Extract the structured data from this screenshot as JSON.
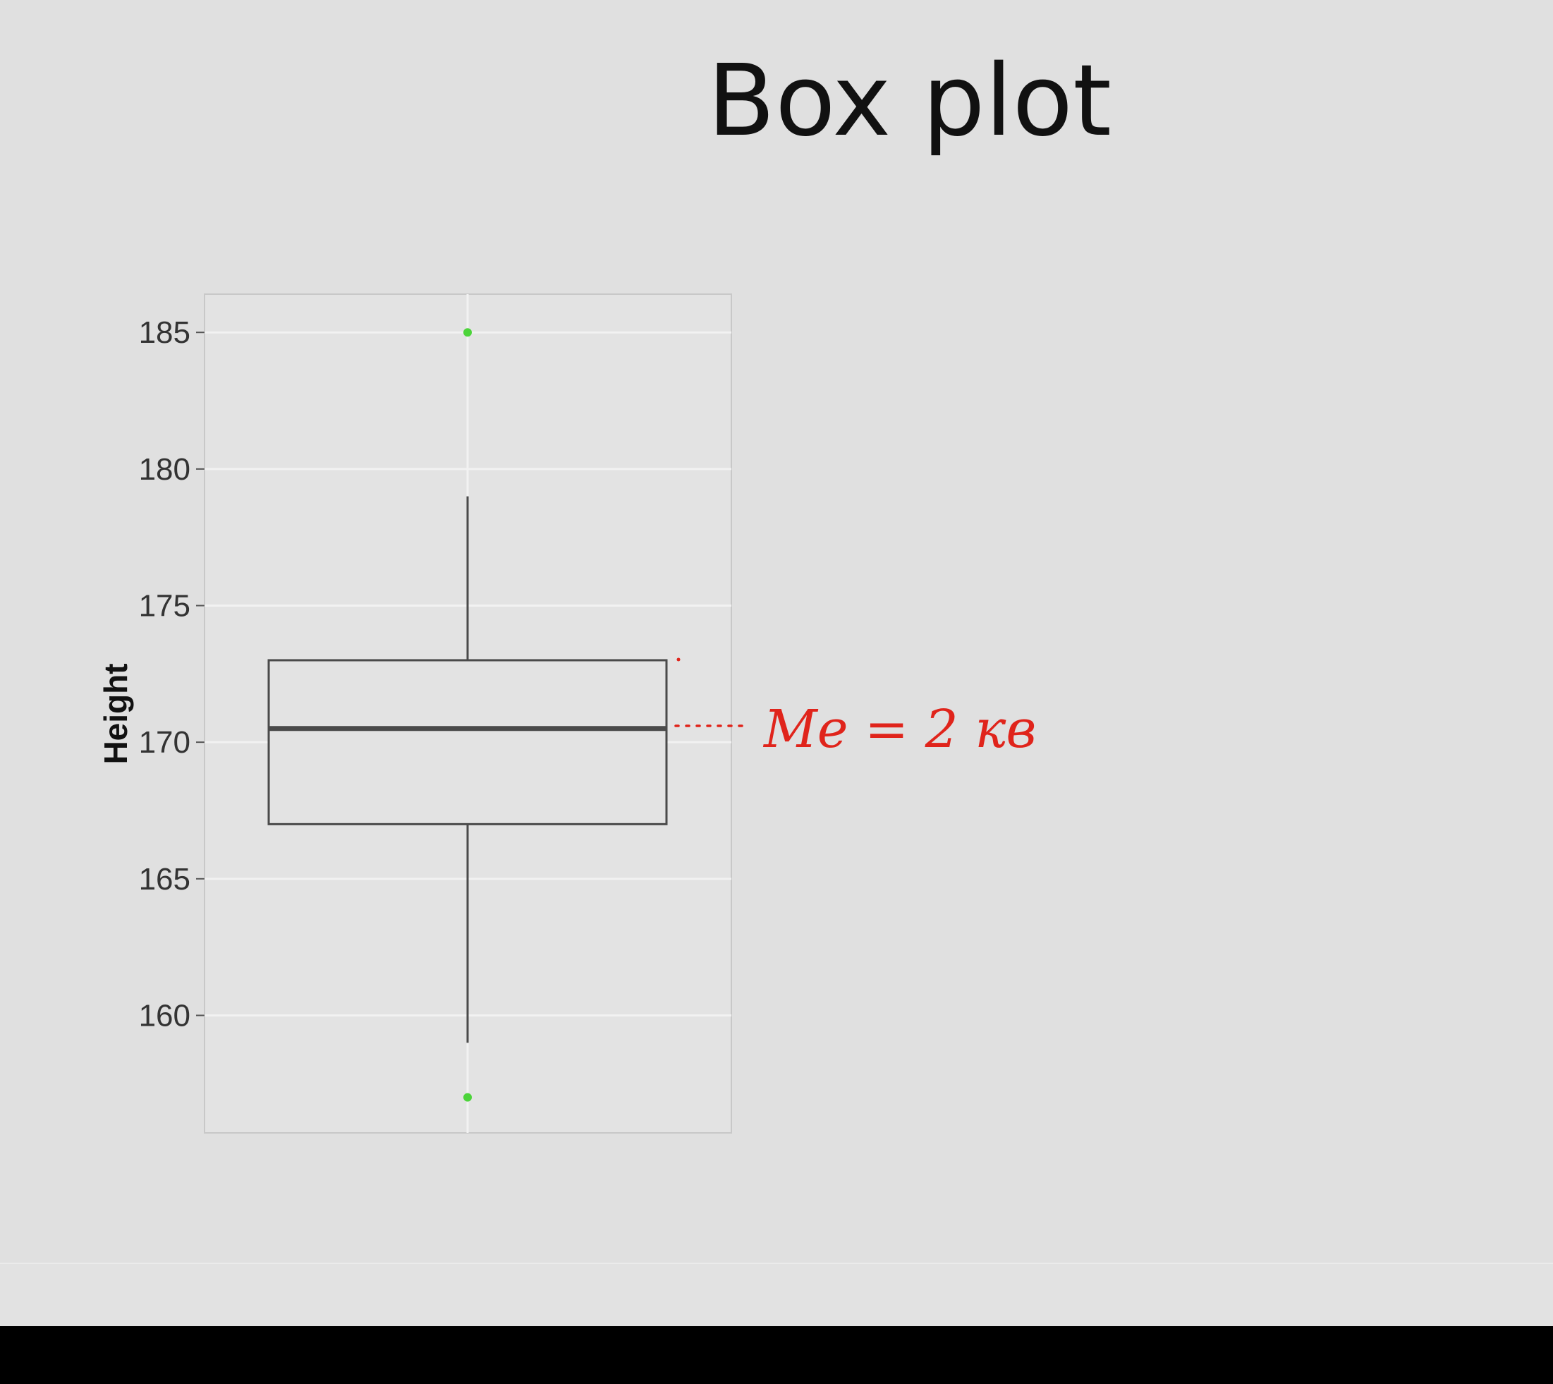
{
  "slide": {
    "title": "Box plot",
    "annotation": "Me = 2 кв"
  },
  "colors": {
    "background": "#e0e0e0",
    "box_stroke": "#4a4a4a",
    "outlier": "#4cd43a",
    "annotation": "#e0241b",
    "grid": "#f2f2f2"
  },
  "chart_data": {
    "type": "box",
    "ylabel": "Height",
    "ylim": [
      155.7,
      186.4
    ],
    "yticks": [
      160,
      165,
      170,
      175,
      180,
      185
    ],
    "grid": true,
    "boxes": [
      {
        "whisker_low": 159,
        "q1": 167,
        "median": 170.5,
        "q3": 173,
        "whisker_high": 179,
        "outliers": [
          185,
          157
        ]
      }
    ]
  }
}
